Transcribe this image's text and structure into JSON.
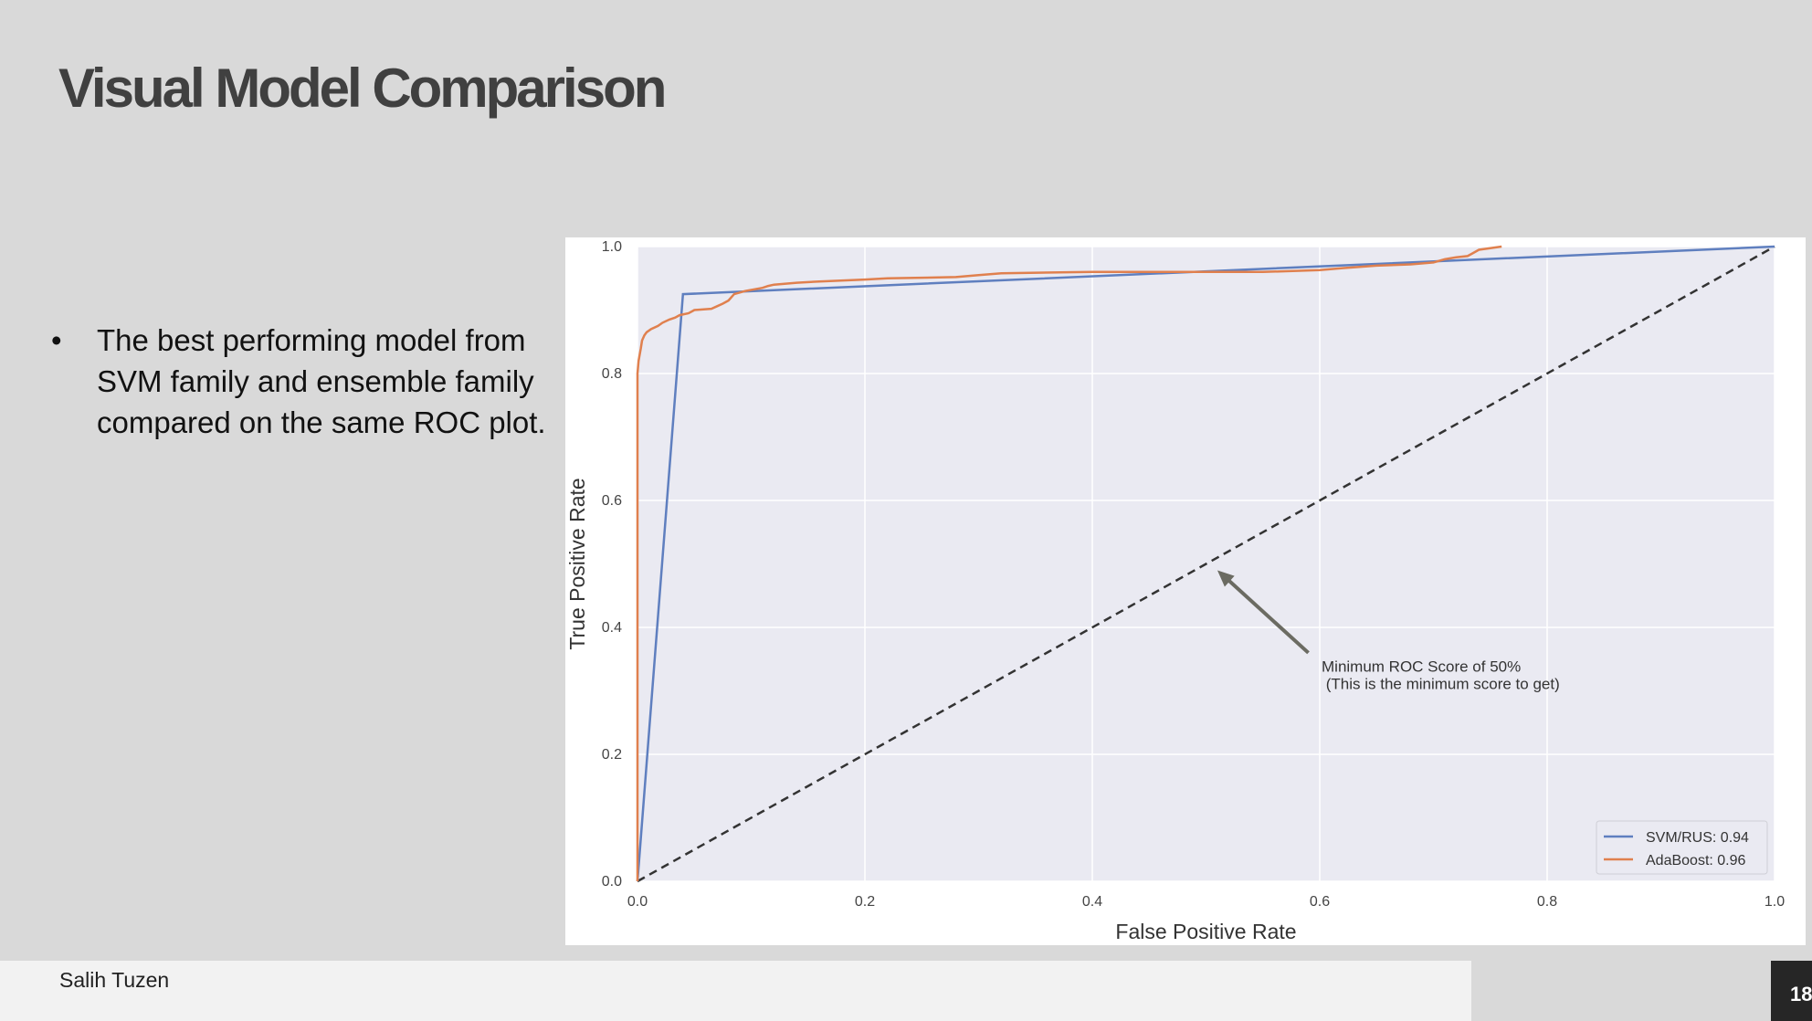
{
  "slide": {
    "title": "Visual Model Comparison",
    "bullets": [
      "The best performing model from SVM family and ensemble family compared on the same ROC plot."
    ],
    "author": "Salih Tuzen",
    "page_number": "18"
  },
  "chart_data": {
    "type": "line",
    "xlabel": "False Positive Rate",
    "ylabel": "True Positive Rate",
    "xlim": [
      0,
      1
    ],
    "ylim": [
      0,
      1
    ],
    "x_ticks": [
      "0.0",
      "0.2",
      "0.4",
      "0.6",
      "0.8",
      "1.0"
    ],
    "y_ticks": [
      "0.0",
      "0.2",
      "0.4",
      "0.6",
      "0.8",
      "1.0"
    ],
    "grid": true,
    "legend_position": "bottom-right",
    "series": [
      {
        "name": "SVM/RUS: 0.94",
        "color": "#5f7fbf",
        "x": [
          0.0,
          0.04,
          1.0
        ],
        "y": [
          0.0,
          0.925,
          1.0
        ]
      },
      {
        "name": "AdaBoost: 0.96",
        "color": "#e0804e",
        "x": [
          0.0,
          0.0,
          0.001,
          0.003,
          0.004,
          0.006,
          0.008,
          0.012,
          0.018,
          0.022,
          0.028,
          0.033,
          0.037,
          0.045,
          0.05,
          0.065,
          0.07,
          0.075,
          0.08,
          0.085,
          0.095,
          0.11,
          0.115,
          0.12,
          0.14,
          0.16,
          0.2,
          0.22,
          0.28,
          0.3,
          0.32,
          0.4,
          0.5,
          0.55,
          0.6,
          0.62,
          0.65,
          0.68,
          0.7,
          0.71,
          0.72,
          0.73,
          0.735,
          0.74,
          0.76
        ],
        "y": [
          0.0,
          0.8,
          0.82,
          0.84,
          0.852,
          0.86,
          0.865,
          0.87,
          0.875,
          0.88,
          0.885,
          0.888,
          0.892,
          0.895,
          0.9,
          0.902,
          0.906,
          0.91,
          0.915,
          0.925,
          0.93,
          0.935,
          0.938,
          0.94,
          0.943,
          0.945,
          0.948,
          0.95,
          0.952,
          0.955,
          0.958,
          0.96,
          0.96,
          0.96,
          0.963,
          0.966,
          0.97,
          0.972,
          0.975,
          0.98,
          0.983,
          0.985,
          0.99,
          0.995,
          1.0
        ]
      }
    ],
    "baseline": {
      "x": [
        0,
        1
      ],
      "y": [
        0,
        1
      ]
    },
    "annotation": {
      "lines": [
        "Minimum ROC Score of 50%",
        " (This is the minimum score to get)"
      ],
      "text_x": 0.6,
      "text_y": 0.33,
      "arrow_from": [
        0.59,
        0.36
      ],
      "arrow_to": [
        0.51,
        0.49
      ]
    }
  }
}
